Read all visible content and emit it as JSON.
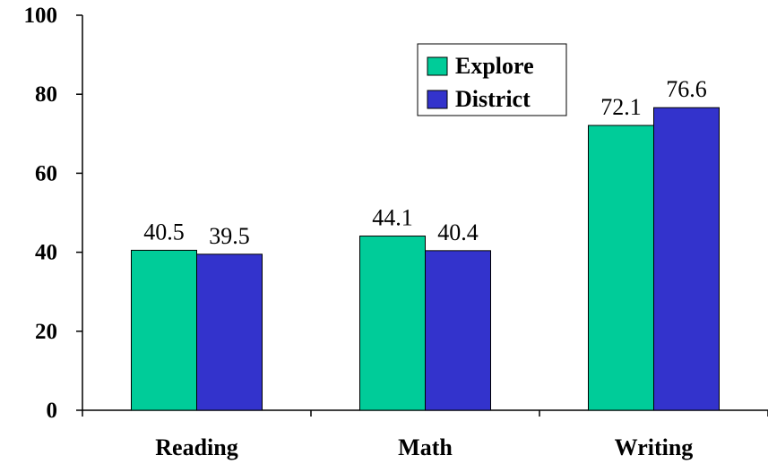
{
  "chart_data": {
    "type": "bar",
    "categories": [
      "Reading",
      "Math",
      "Writing"
    ],
    "series": [
      {
        "name": "Explore",
        "values": [
          40.5,
          44.1,
          72.1
        ],
        "color": "#00cc99"
      },
      {
        "name": "District",
        "values": [
          39.5,
          40.4,
          76.6
        ],
        "color": "#3333cc"
      }
    ],
    "data_labels": [
      [
        "40.5",
        "44.1",
        "72.1"
      ],
      [
        "39.5",
        "40.4",
        "76.6"
      ]
    ],
    "yticks": [
      0,
      20,
      40,
      60,
      80,
      100
    ],
    "ylim": [
      0,
      100
    ],
    "grid": false,
    "legend_position": "top-right"
  }
}
